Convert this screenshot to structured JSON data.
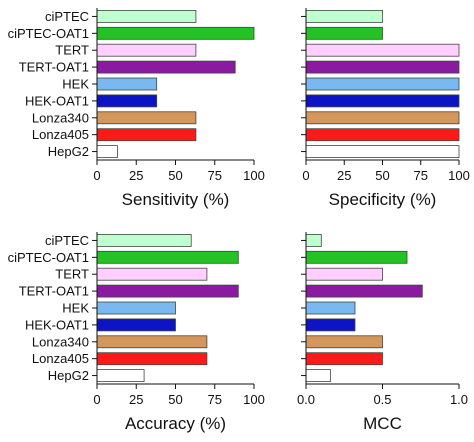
{
  "categories": [
    "ciPTEC",
    "ciPTEC-OAT1",
    "TERT",
    "TERT-OAT1",
    "HEK",
    "HEK-OAT1",
    "Lonza340",
    "Lonza405",
    "HepG2"
  ],
  "colors": [
    "#bfffd0",
    "#22c422",
    "#ffcfff",
    "#8a1aa0",
    "#7ab8f0",
    "#0c14c4",
    "#d4965a",
    "#ff1a1a",
    "#ffffff"
  ],
  "chart_data": [
    {
      "type": "bar",
      "orientation": "horizontal",
      "xlabel": "Sensitivity (%)",
      "xlim": [
        0,
        100
      ],
      "xticks": [
        "0",
        "25",
        "50",
        "75",
        "100"
      ],
      "categories": [
        "ciPTEC",
        "ciPTEC-OAT1",
        "TERT",
        "TERT-OAT1",
        "HEK",
        "HEK-OAT1",
        "Lonza340",
        "Lonza405",
        "HepG2"
      ],
      "values": [
        63,
        100,
        63,
        88,
        38,
        38,
        63,
        63,
        13
      ]
    },
    {
      "type": "bar",
      "orientation": "horizontal",
      "xlabel": "Specificity (%)",
      "xlim": [
        0,
        100
      ],
      "xticks": [
        "0",
        "25",
        "50",
        "75",
        "100"
      ],
      "categories": [
        "ciPTEC",
        "ciPTEC-OAT1",
        "TERT",
        "TERT-OAT1",
        "HEK",
        "HEK-OAT1",
        "Lonza340",
        "Lonza405",
        "HepG2"
      ],
      "values": [
        50,
        50,
        100,
        100,
        100,
        100,
        100,
        100,
        100
      ]
    },
    {
      "type": "bar",
      "orientation": "horizontal",
      "xlabel": "Accuracy (%)",
      "xlim": [
        0,
        100
      ],
      "xticks": [
        "0",
        "25",
        "50",
        "75",
        "100"
      ],
      "categories": [
        "ciPTEC",
        "ciPTEC-OAT1",
        "TERT",
        "TERT-OAT1",
        "HEK",
        "HEK-OAT1",
        "Lonza340",
        "Lonza405",
        "HepG2"
      ],
      "values": [
        60,
        90,
        70,
        90,
        50,
        50,
        70,
        70,
        30
      ]
    },
    {
      "type": "bar",
      "orientation": "horizontal",
      "xlabel": "MCC",
      "xlim": [
        0,
        1
      ],
      "xticks": [
        "0.0",
        "0.5",
        "1.0"
      ],
      "categories": [
        "ciPTEC",
        "ciPTEC-OAT1",
        "TERT",
        "TERT-OAT1",
        "HEK",
        "HEK-OAT1",
        "Lonza340",
        "Lonza405",
        "HepG2"
      ],
      "values": [
        0.1,
        0.66,
        0.5,
        0.76,
        0.32,
        0.32,
        0.5,
        0.5,
        0.16
      ]
    }
  ]
}
